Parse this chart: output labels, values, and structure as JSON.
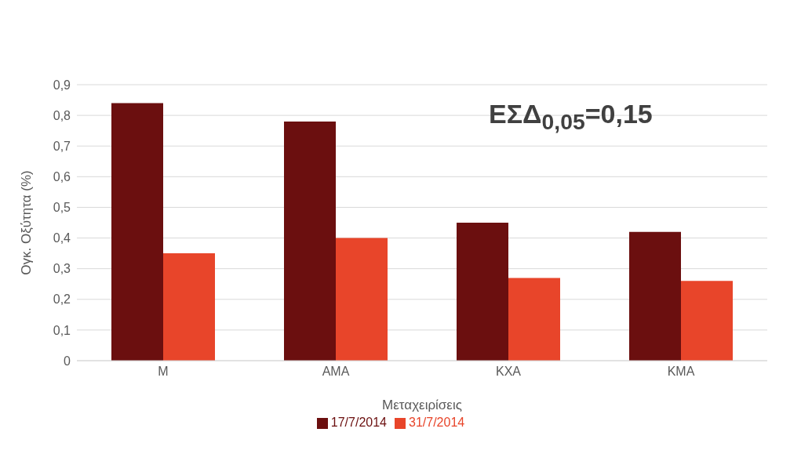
{
  "chart_data": {
    "type": "bar",
    "xlabel": "Μεταχειρίσεις",
    "ylabel": "Ογκ. Οξύτητα (%)",
    "categories": [
      "M",
      "AMA",
      "KXA",
      "KMA"
    ],
    "series": [
      {
        "name": "17/7/2014",
        "color": "#6b0f0f",
        "values": [
          0.84,
          0.78,
          0.45,
          0.42
        ]
      },
      {
        "name": "31/7/2014",
        "color": "#e8452a",
        "values": [
          0.35,
          0.4,
          0.27,
          0.26
        ]
      }
    ],
    "ylim": [
      0,
      0.9
    ],
    "yticks": [
      {
        "value": 0,
        "label": "0"
      },
      {
        "value": 0.1,
        "label": "0,1"
      },
      {
        "value": 0.2,
        "label": "0,2"
      },
      {
        "value": 0.3,
        "label": "0,3"
      },
      {
        "value": 0.4,
        "label": "0,4"
      },
      {
        "value": 0.5,
        "label": "0,5"
      },
      {
        "value": 0.6,
        "label": "0,6"
      },
      {
        "value": 0.7,
        "label": "0,7"
      },
      {
        "value": 0.8,
        "label": "0,8"
      },
      {
        "value": 0.9,
        "label": "0,9"
      }
    ],
    "grid": "y",
    "legend": "bottom",
    "annotations": [
      "ΕΣΔ$_{0,05}$=0,15"
    ]
  }
}
